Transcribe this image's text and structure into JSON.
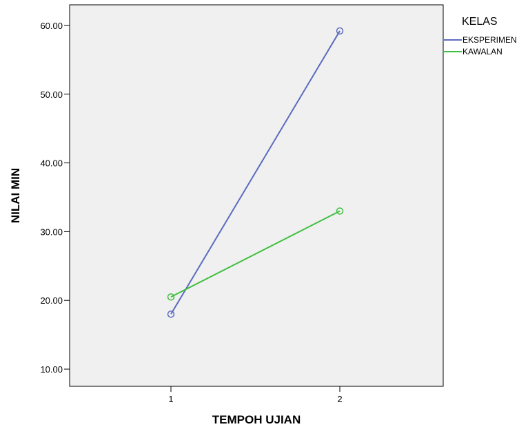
{
  "chart_data": {
    "type": "line",
    "xlabel": "TEMPOH UJIAN",
    "ylabel": "NILAI MIN",
    "categories": [
      "1",
      "2"
    ],
    "ylim": [
      7.5,
      63.0
    ],
    "yticks": [
      "10.00",
      "20.00",
      "30.00",
      "40.00",
      "50.00",
      "60.00"
    ],
    "grid": false,
    "legend": {
      "title": "KELAS",
      "position": "right"
    },
    "series": [
      {
        "name": "EKSPERIMEN",
        "color": "#5b6bbf",
        "values": [
          18.0,
          59.2
        ]
      },
      {
        "name": "KAWALAN",
        "color": "#3fbf3f",
        "values": [
          20.5,
          33.0
        ]
      }
    ],
    "plot_background": "#f0f0f0",
    "marker": "open-circle"
  }
}
